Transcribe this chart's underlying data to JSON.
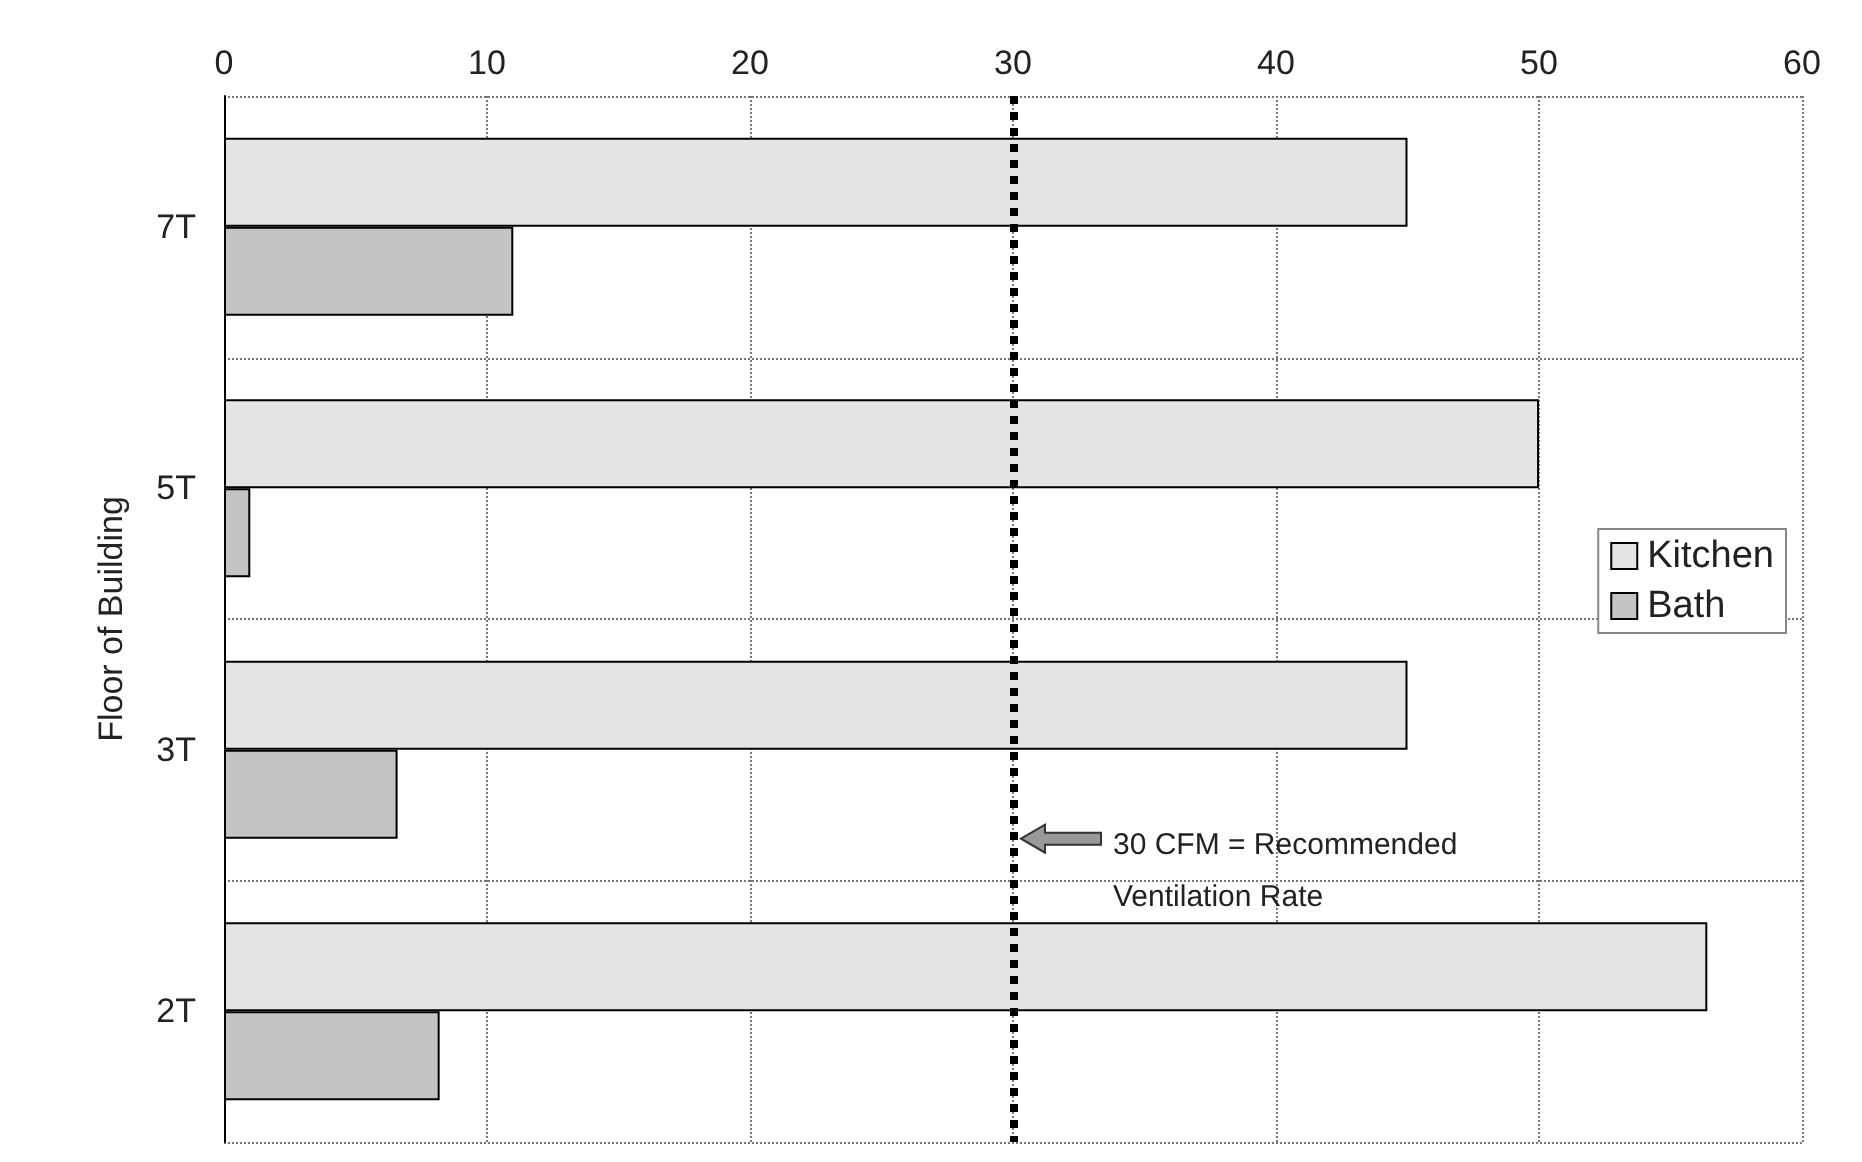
{
  "chart_data": {
    "type": "bar",
    "orientation": "horizontal",
    "ylabel": "Floor of Building",
    "categories": [
      "7T",
      "5T",
      "3T",
      "2T"
    ],
    "series": [
      {
        "name": "Kitchen",
        "color": "#e4e4e4",
        "values": [
          45,
          50,
          45,
          56.4
        ]
      },
      {
        "name": "Bath",
        "color": "#c4c4c4",
        "values": [
          11,
          1,
          6.6,
          8.2
        ]
      }
    ],
    "xlim": [
      0,
      60
    ],
    "xticks": [
      0,
      10,
      20,
      30,
      40,
      50,
      60
    ],
    "grid": true,
    "legend": "right",
    "ref_lines": [
      {
        "axis": "x",
        "value": 30,
        "color": "#000000",
        "line_style": "dotted"
      }
    ],
    "annotations": [
      "30 CFM = Recommended\nVentilation Rate"
    ]
  }
}
